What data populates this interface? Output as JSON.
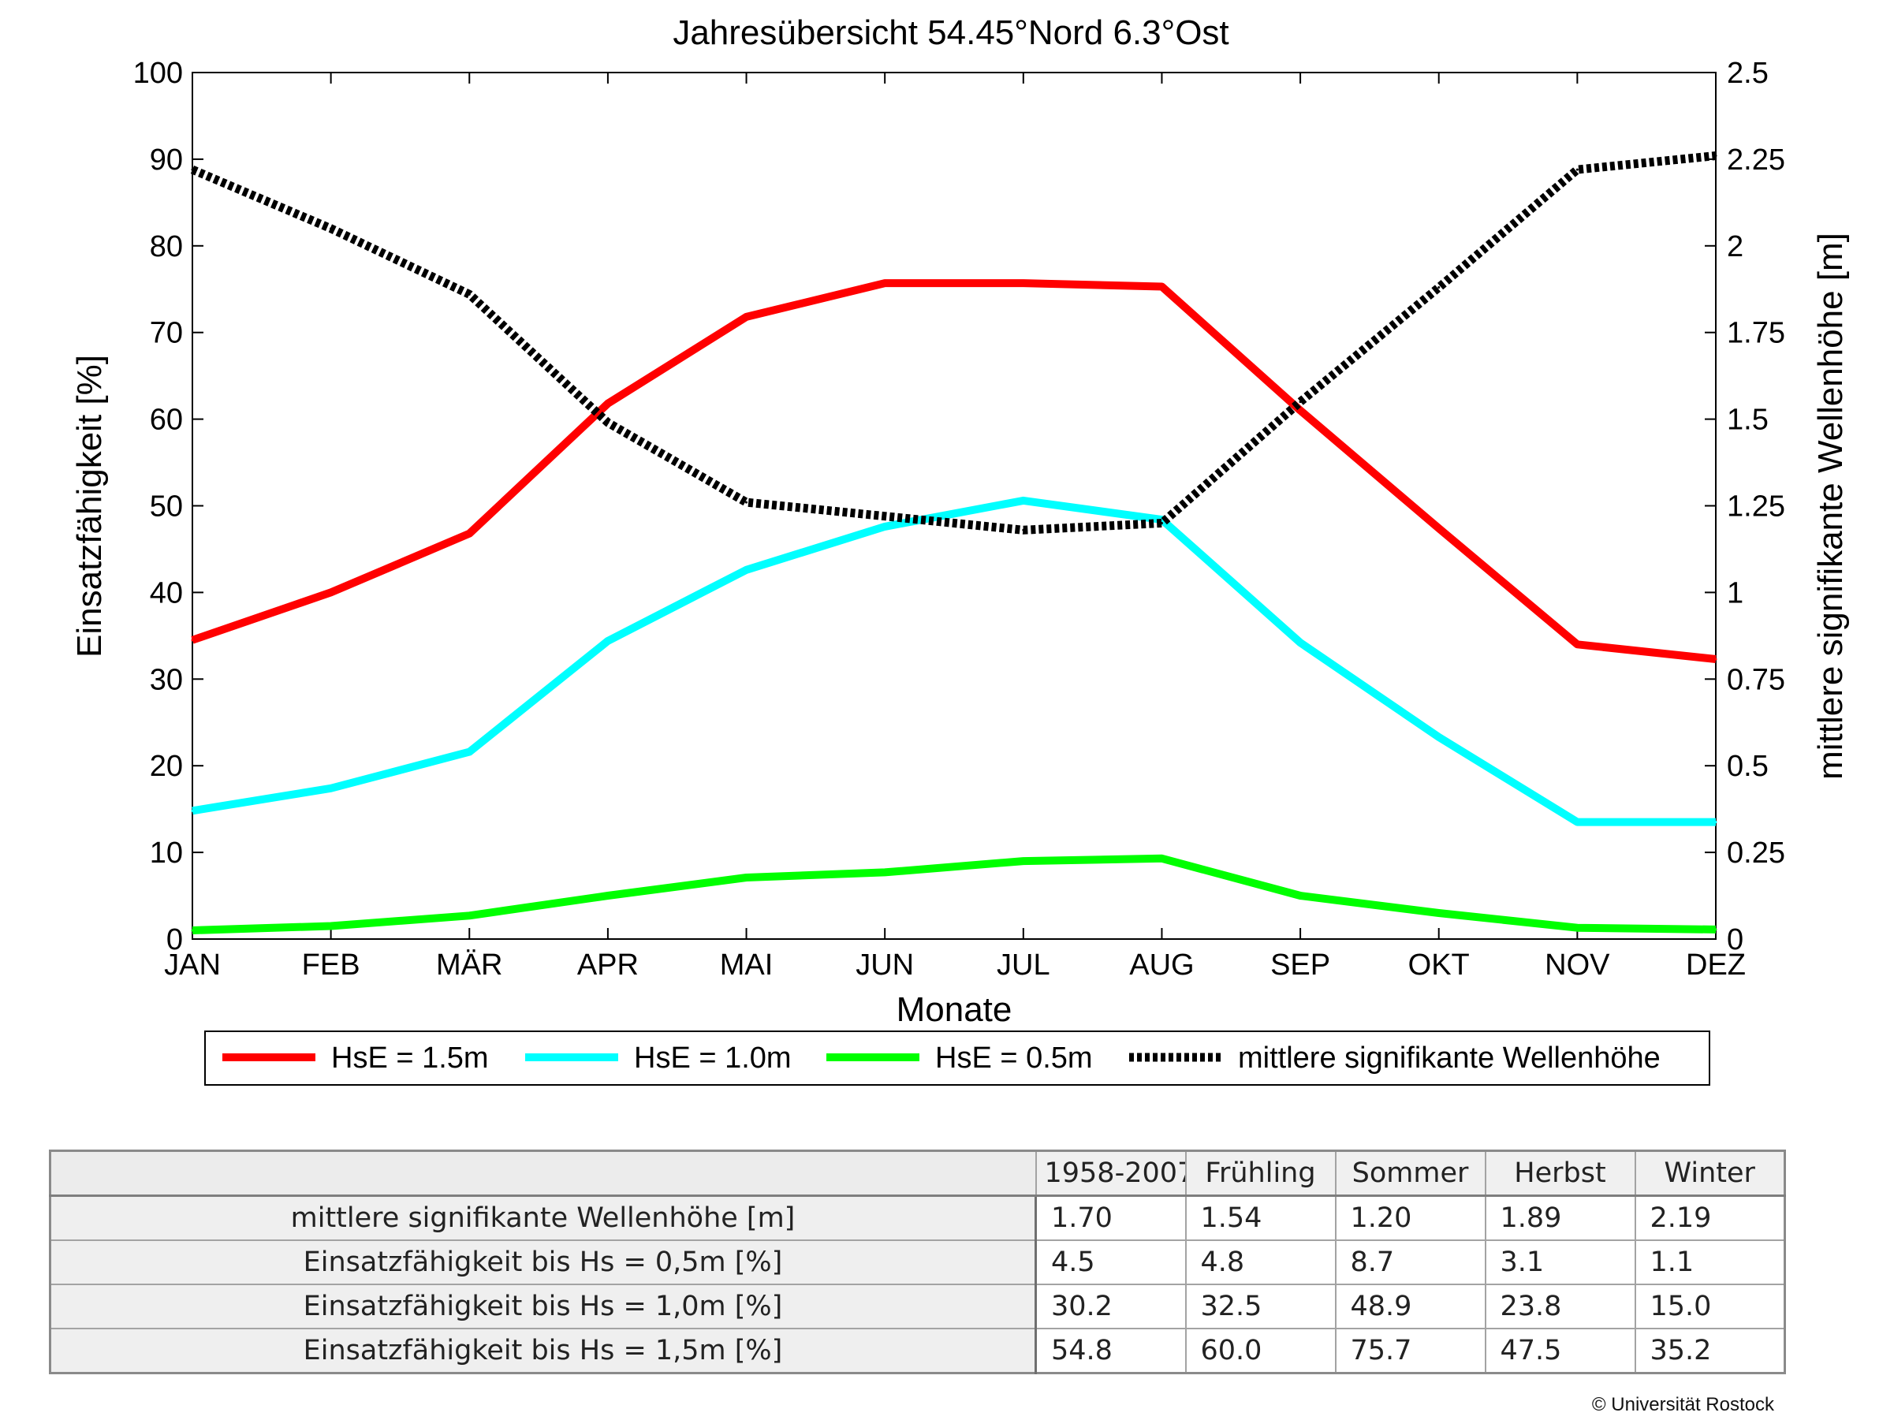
{
  "chart_data": {
    "type": "line",
    "title": "Jahresübersicht  54.45°Nord  6.3°Ost",
    "xlabel": "Monate",
    "ylabel": "Einsatzfähigkeit [%]",
    "y2label": "mittlere signifikante Wellenhöhe [m]",
    "categories": [
      "JAN",
      "FEB",
      "MÄR",
      "APR",
      "MAI",
      "JUN",
      "JUL",
      "AUG",
      "SEP",
      "OKT",
      "NOV",
      "DEZ"
    ],
    "ylim": [
      0,
      100
    ],
    "yticks": [
      0,
      10,
      20,
      30,
      40,
      50,
      60,
      70,
      80,
      90,
      100
    ],
    "y2lim": [
      0,
      2.5
    ],
    "y2ticks": [
      "0",
      "0.25",
      "0.5",
      "0.75",
      "1",
      "1.25",
      "1.5",
      "1.75",
      "2",
      "2.25",
      "2.5"
    ],
    "grid": false,
    "legend_position": "bottom",
    "series": [
      {
        "name": "HsE = 1.5m",
        "axis": "left",
        "color": "#ff0000",
        "style": "solid",
        "values": [
          34.5,
          40,
          46.8,
          61.8,
          71.8,
          75.7,
          75.7,
          75.3,
          61,
          47.4,
          34,
          32.3
        ]
      },
      {
        "name": "HsE = 1.0m",
        "axis": "left",
        "color": "#00ffff",
        "style": "solid",
        "values": [
          14.8,
          17.4,
          21.6,
          34.4,
          42.6,
          47.6,
          50.6,
          48.4,
          34.2,
          23.3,
          13.5,
          13.5
        ]
      },
      {
        "name": "HsE = 0.5m",
        "axis": "left",
        "color": "#00ff00",
        "style": "solid",
        "values": [
          1,
          1.5,
          2.7,
          5,
          7.1,
          7.7,
          9,
          9.3,
          5,
          3,
          1.3,
          1.1
        ]
      },
      {
        "name": "mittlere signifikante Wellenhöhe",
        "axis": "right",
        "color": "#000000",
        "style": "dotted",
        "values": [
          2.22,
          2.05,
          1.86,
          1.49,
          1.26,
          1.22,
          1.18,
          1.2,
          1.55,
          1.88,
          2.22,
          2.26
        ]
      }
    ]
  },
  "table": {
    "columns": [
      "1958-2007",
      "Frühling",
      "Sommer",
      "Herbst",
      "Winter"
    ],
    "rows": [
      {
        "label": "mittlere signifikante Wellenhöhe [m]",
        "values": [
          "1.70",
          "1.54",
          "1.20",
          "1.89",
          "2.19"
        ]
      },
      {
        "label": "Einsatzfähigkeit bis Hs = 0,5m [%]",
        "values": [
          "4.5",
          "4.8",
          "8.7",
          "3.1",
          "1.1"
        ]
      },
      {
        "label": "Einsatzfähigkeit bis Hs = 1,0m [%]",
        "values": [
          "30.2",
          "32.5",
          "48.9",
          "23.8",
          "15.0"
        ]
      },
      {
        "label": "Einsatzfähigkeit bis Hs = 1,5m [%]",
        "values": [
          "54.8",
          "60.0",
          "75.7",
          "47.5",
          "35.2"
        ]
      }
    ]
  },
  "copyright": "© Universität Rostock"
}
